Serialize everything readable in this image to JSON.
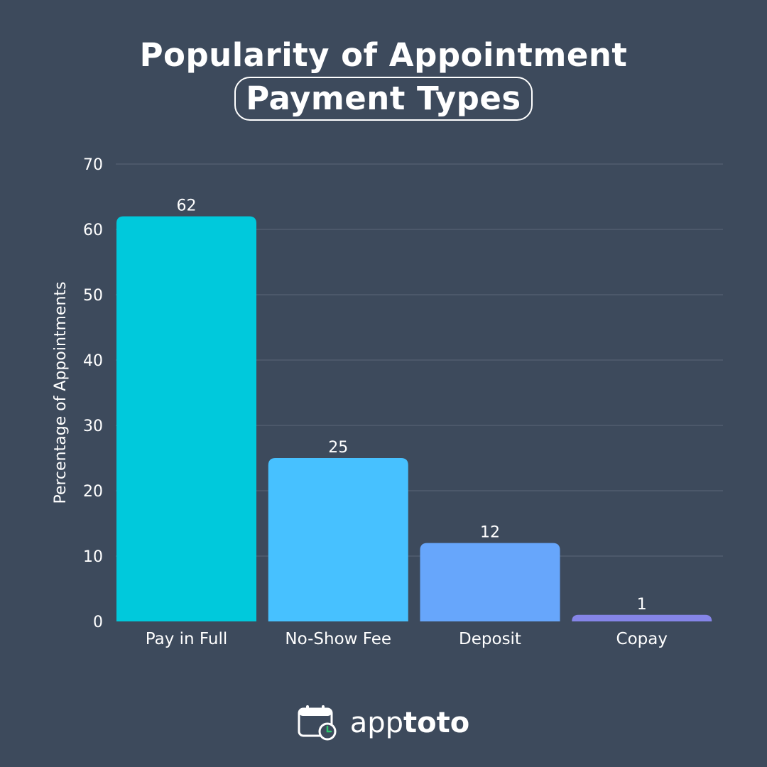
{
  "chart_data": {
    "type": "bar",
    "title_line1": "Popularity of Appointment",
    "title_line2": "Payment Types",
    "ylabel": "Percentage of Appointments",
    "xlabel": "",
    "categories": [
      "Pay in Full",
      "No-Show Fee",
      "Deposit",
      "Copay"
    ],
    "values": [
      62,
      25,
      12,
      1
    ],
    "data_labels": [
      "62",
      "25",
      "12",
      "1"
    ],
    "colors": [
      "#00c9dc",
      "#47c1ff",
      "#67a6fb",
      "#8585e8"
    ],
    "ylim": [
      0,
      70
    ],
    "yticks": [
      0,
      10,
      20,
      30,
      40,
      50,
      60,
      70
    ],
    "grid": true,
    "legend": "none"
  },
  "colors": {
    "background": "#3d4a5c",
    "gridline": "#5a6678",
    "text": "#ffffff",
    "clock_accent": "#2dc66b"
  },
  "footer": {
    "icon": "calendar-clock-icon",
    "brand_light": "app",
    "brand_bold": "toto"
  }
}
